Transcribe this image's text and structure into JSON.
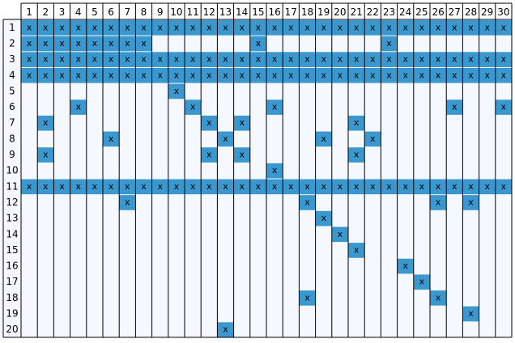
{
  "grid": {
    "mark_text": "x",
    "columns": [
      "1",
      "2",
      "3",
      "4",
      "5",
      "6",
      "7",
      "8",
      "9",
      "10",
      "11",
      "12",
      "13",
      "14",
      "15",
      "16",
      "17",
      "18",
      "19",
      "20",
      "21",
      "22",
      "23",
      "24",
      "25",
      "26",
      "27",
      "28",
      "29",
      "30"
    ],
    "rows": [
      {
        "label": "1",
        "marked": [
          1,
          2,
          3,
          4,
          5,
          6,
          7,
          8,
          9,
          10,
          11,
          12,
          13,
          14,
          15,
          16,
          17,
          18,
          19,
          20,
          21,
          22,
          23,
          24,
          25,
          26,
          27,
          28,
          29,
          30
        ]
      },
      {
        "label": "2",
        "marked": [
          1,
          2,
          3,
          4,
          5,
          6,
          7,
          8,
          15,
          23
        ]
      },
      {
        "label": "3",
        "marked": [
          1,
          2,
          3,
          4,
          5,
          6,
          7,
          8,
          9,
          10,
          11,
          12,
          13,
          14,
          15,
          16,
          17,
          18,
          19,
          20,
          21,
          22,
          23,
          24,
          25,
          26,
          27,
          28,
          29,
          30
        ]
      },
      {
        "label": "4",
        "marked": [
          1,
          2,
          3,
          4,
          5,
          6,
          7,
          8,
          9,
          10,
          11,
          12,
          13,
          14,
          15,
          16,
          17,
          18,
          19,
          20,
          21,
          22,
          23,
          24,
          25,
          26,
          27,
          28,
          29,
          30
        ]
      },
      {
        "label": "5",
        "marked": [
          10
        ]
      },
      {
        "label": "6",
        "marked": [
          4,
          11,
          16,
          27,
          30
        ]
      },
      {
        "label": "7",
        "marked": [
          2,
          12,
          14,
          21
        ]
      },
      {
        "label": "8",
        "marked": [
          6,
          13,
          19,
          22
        ]
      },
      {
        "label": "9",
        "marked": [
          2,
          12,
          14,
          21
        ]
      },
      {
        "label": "10",
        "marked": [
          16
        ]
      },
      {
        "label": "11",
        "marked": [
          1,
          2,
          3,
          4,
          5,
          6,
          7,
          8,
          9,
          10,
          11,
          12,
          13,
          14,
          15,
          16,
          17,
          18,
          19,
          20,
          21,
          22,
          23,
          24,
          25,
          26,
          27,
          28,
          29,
          30
        ]
      },
      {
        "label": "12",
        "marked": [
          7,
          18,
          26,
          28
        ]
      },
      {
        "label": "13",
        "marked": [
          19
        ]
      },
      {
        "label": "14",
        "marked": [
          20
        ]
      },
      {
        "label": "15",
        "marked": [
          21
        ]
      },
      {
        "label": "16",
        "marked": [
          24
        ]
      },
      {
        "label": "17",
        "marked": [
          25
        ]
      },
      {
        "label": "18",
        "marked": [
          18,
          26
        ]
      },
      {
        "label": "19",
        "marked": [
          28
        ]
      },
      {
        "label": "20",
        "marked": [
          13
        ]
      }
    ]
  }
}
